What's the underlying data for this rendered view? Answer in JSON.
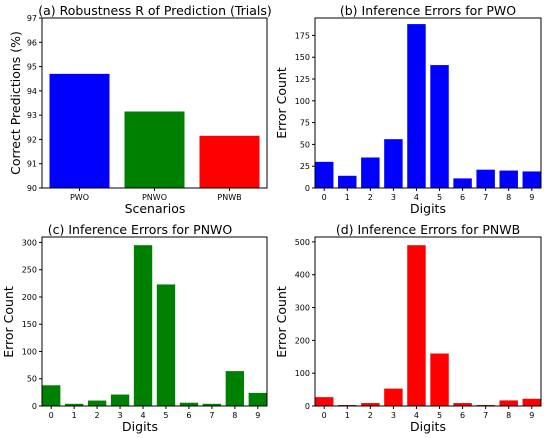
{
  "chart_data": [
    {
      "type": "bar",
      "title": "(a) Robustness R of Prediction (Trials)",
      "xlabel": "Scenarios",
      "ylabel": "Correct Predictions (%)",
      "categories": [
        "PWO",
        "PNWO",
        "PNWB"
      ],
      "values": [
        94.7,
        93.15,
        92.15
      ],
      "colors": [
        "#0000ff",
        "#008000",
        "#ff0000"
      ],
      "ylim": [
        90,
        97
      ],
      "yticks": [
        90,
        91,
        92,
        93,
        94,
        95,
        96,
        97
      ]
    },
    {
      "type": "bar",
      "title": "(b) Inference Errors for PWO",
      "xlabel": "Digits",
      "ylabel": "Error Count",
      "categories": [
        "0",
        "1",
        "2",
        "3",
        "4",
        "5",
        "6",
        "7",
        "8",
        "9"
      ],
      "values": [
        30,
        14,
        35,
        56,
        188,
        141,
        11,
        21,
        20,
        19
      ],
      "colors": [
        "#0000ff"
      ],
      "ylim": [
        0,
        195
      ],
      "yticks": [
        0,
        25,
        50,
        75,
        100,
        125,
        150,
        175
      ]
    },
    {
      "type": "bar",
      "title": "(c) Inference Errors for PNWO",
      "xlabel": "Digits",
      "ylabel": "Error Count",
      "categories": [
        "0",
        "1",
        "2",
        "3",
        "4",
        "5",
        "6",
        "7",
        "8",
        "9"
      ],
      "values": [
        38,
        4,
        10,
        21,
        295,
        223,
        6,
        4,
        64,
        24
      ],
      "colors": [
        "#008000"
      ],
      "ylim": [
        0,
        310
      ],
      "yticks": [
        0,
        50,
        100,
        150,
        200,
        250,
        300
      ]
    },
    {
      "type": "bar",
      "title": "(d) Inference Errors for PNWB",
      "xlabel": "Digits",
      "ylabel": "Error Count",
      "categories": [
        "0",
        "1",
        "2",
        "3",
        "4",
        "5",
        "6",
        "7",
        "8",
        "9"
      ],
      "values": [
        27,
        3,
        9,
        53,
        490,
        160,
        9,
        3,
        17,
        22
      ],
      "colors": [
        "#ff0000"
      ],
      "ylim": [
        0,
        515
      ],
      "yticks": [
        0,
        100,
        200,
        300,
        400,
        500
      ]
    }
  ]
}
